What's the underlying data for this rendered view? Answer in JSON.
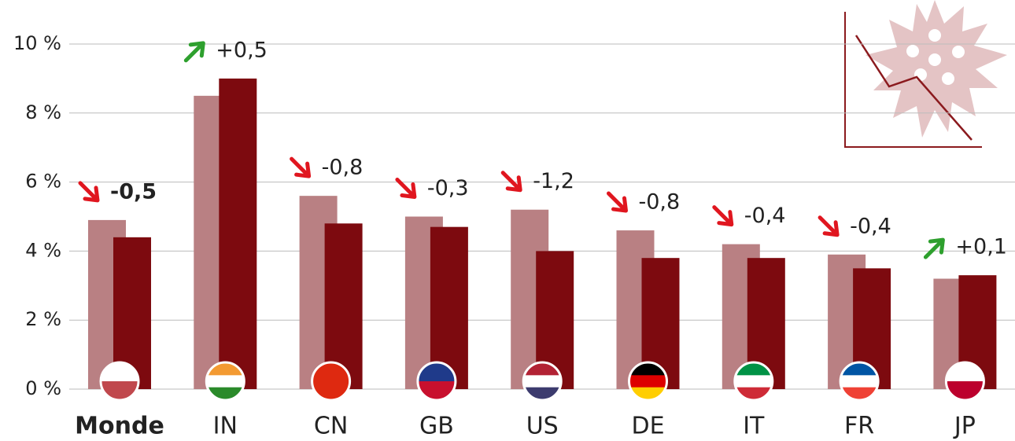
{
  "chart_data": {
    "type": "bar",
    "categories": [
      "Monde",
      "IN",
      "CN",
      "GB",
      "US",
      "DE",
      "IT",
      "FR",
      "JP"
    ],
    "series": [
      {
        "color": "#b98083",
        "values": [
          4.9,
          8.5,
          5.6,
          5.0,
          5.2,
          4.6,
          4.2,
          3.9,
          3.2
        ]
      },
      {
        "color": "#7d0a0f",
        "values": [
          4.4,
          9.0,
          4.8,
          4.7,
          4.0,
          3.8,
          3.8,
          3.5,
          3.3
        ]
      }
    ],
    "changes": [
      {
        "value": -0.5,
        "label": "-0,5"
      },
      {
        "value": 0.5,
        "label": "+0,5"
      },
      {
        "value": -0.8,
        "label": "-0,8"
      },
      {
        "value": -0.3,
        "label": "-0,3"
      },
      {
        "value": -1.2,
        "label": "-1,2"
      },
      {
        "value": -0.8,
        "label": "-0,8"
      },
      {
        "value": -0.4,
        "label": "-0,4"
      },
      {
        "value": -0.4,
        "label": "-0,4"
      },
      {
        "value": 0.1,
        "label": "+0,1"
      }
    ],
    "ylim": [
      0,
      10
    ],
    "yticks": [
      {
        "value": 0,
        "label": "0 %"
      },
      {
        "value": 2,
        "label": "2 %"
      },
      {
        "value": 4,
        "label": "4 %"
      },
      {
        "value": 6,
        "label": "6 %"
      },
      {
        "value": 8,
        "label": "8 %"
      },
      {
        "value": 10,
        "label": "10 %"
      }
    ],
    "grid": true,
    "up_color": "#2ea02e",
    "down_color": "#e0161f"
  }
}
